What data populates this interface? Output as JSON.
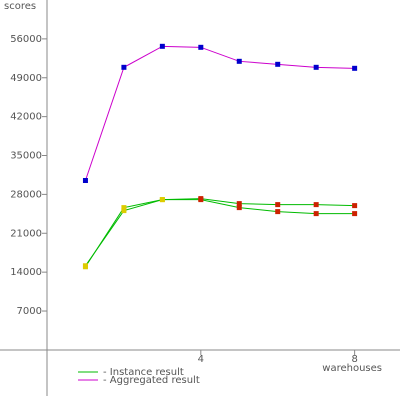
{
  "chart_data": {
    "type": "line",
    "y_label": "scores",
    "x_label": "warehouses",
    "x": [
      1,
      2,
      3,
      4,
      5,
      6,
      7,
      8
    ],
    "xlim": [
      0,
      9.18
    ],
    "xticks": [
      4,
      8
    ],
    "ylim": [
      -8300,
      63000
    ],
    "yticks": [
      7000,
      14000,
      21000,
      28000,
      35000,
      42000,
      49000,
      56000
    ],
    "series": [
      {
        "name": "- Instance result",
        "color": "#00bb00",
        "values": [
          14970,
          25620,
          27060,
          27240,
          26340,
          26160,
          26160,
          25980
        ]
      },
      {
        "color": "#00bb00",
        "values": [
          15150,
          25080,
          27060,
          27060,
          25620,
          24900,
          24540,
          24540
        ]
      },
      {
        "name": "- Aggregated result",
        "color": "#cc00cc",
        "values": [
          30500,
          50880,
          54660,
          54480,
          51960,
          51420,
          50880,
          50700
        ]
      }
    ],
    "marker_colors": {
      "instance": [
        "#ddcc00",
        "#ddcc00",
        "#ddcc00",
        "#cc2200",
        "#cc2200",
        "#cc2200",
        "#cc2200",
        "#cc2200"
      ],
      "aggregated": "#0000cc"
    }
  }
}
